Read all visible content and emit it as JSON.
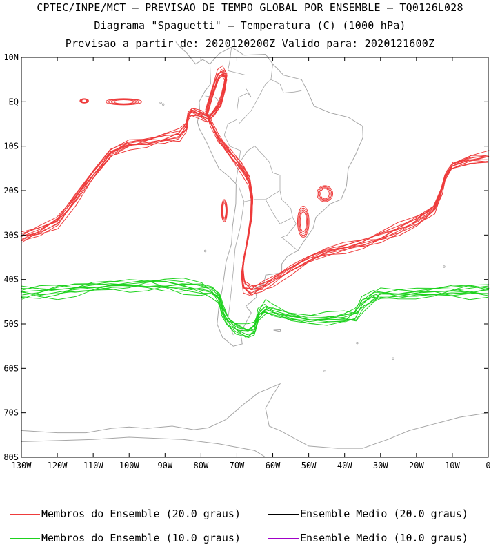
{
  "titles": {
    "line1": "CPTEC/INPE/MCT — PREVISAO DE TEMPO GLOBAL POR ENSEMBLE — TQ0126L028",
    "line2": "Diagrama \"Spaguetti\" — Temperatura (C) (1000 hPa)",
    "line3": "Previsao a partir de: 2020120200Z  Valido para: 2020121600Z"
  },
  "map": {
    "extent": {
      "lon_min": -130,
      "lon_max": 0,
      "lat_min": -80,
      "lat_max": 10
    },
    "lat_ticks": [
      {
        "value": 10,
        "label": "10N"
      },
      {
        "value": 0,
        "label": "EQ"
      },
      {
        "value": -10,
        "label": "10S"
      },
      {
        "value": -20,
        "label": "20S"
      },
      {
        "value": -30,
        "label": "30S"
      },
      {
        "value": -40,
        "label": "40S"
      },
      {
        "value": -50,
        "label": "50S"
      },
      {
        "value": -60,
        "label": "60S"
      },
      {
        "value": -70,
        "label": "70S"
      },
      {
        "value": -80,
        "label": "80S"
      }
    ],
    "lon_ticks": [
      {
        "value": -130,
        "label": "130W"
      },
      {
        "value": -120,
        "label": "120W"
      },
      {
        "value": -110,
        "label": "110W"
      },
      {
        "value": -100,
        "label": "100W"
      },
      {
        "value": -90,
        "label": "90W"
      },
      {
        "value": -80,
        "label": "80W"
      },
      {
        "value": -70,
        "label": "70W"
      },
      {
        "value": -60,
        "label": "60W"
      },
      {
        "value": -50,
        "label": "50W"
      },
      {
        "value": -40,
        "label": "40W"
      },
      {
        "value": -30,
        "label": "30W"
      },
      {
        "value": -20,
        "label": "20W"
      },
      {
        "value": -10,
        "label": "10W"
      },
      {
        "value": 0,
        "label": "0"
      }
    ],
    "colors": {
      "coast": "#a6a6a6",
      "red": "#ee3b3b",
      "green": "#1ed21e",
      "black": "#000000",
      "purple": "#a000c8"
    },
    "isolines": {
      "red_20": [
        [
          -130,
          -30.5
        ],
        [
          -125,
          -29
        ],
        [
          -120,
          -27
        ],
        [
          -115,
          -22
        ],
        [
          -110,
          -16.5
        ],
        [
          -105,
          -11.5
        ],
        [
          -100,
          -9.5
        ],
        [
          -95,
          -9
        ],
        [
          -90,
          -8.2
        ],
        [
          -86,
          -7.5
        ],
        [
          -84,
          -5.5
        ],
        [
          -83.5,
          -3
        ],
        [
          -82.5,
          -2.1
        ],
        [
          -80,
          -3
        ],
        [
          -78,
          -4
        ],
        [
          -76,
          -2
        ],
        [
          -74.5,
          0
        ],
        [
          -73.5,
          3
        ],
        [
          -73,
          5.5
        ],
        [
          -74,
          6.5
        ],
        [
          -75.2,
          6
        ],
        [
          -76.5,
          3
        ],
        [
          -78.5,
          -2.5
        ],
        [
          -77.5,
          -4.5
        ],
        [
          -75,
          -8.5
        ],
        [
          -71.5,
          -12
        ],
        [
          -68.5,
          -15
        ],
        [
          -66.5,
          -18
        ],
        [
          -65.8,
          -22
        ],
        [
          -66,
          -26
        ],
        [
          -67,
          -31
        ],
        [
          -68,
          -35
        ],
        [
          -68.5,
          -38.5
        ],
        [
          -68,
          -41.5
        ],
        [
          -66,
          -42.5
        ],
        [
          -63,
          -41.5
        ],
        [
          -60,
          -40.2
        ],
        [
          -55,
          -37.8
        ],
        [
          -50,
          -35.5
        ],
        [
          -45,
          -33.8
        ],
        [
          -40,
          -32.8
        ],
        [
          -35,
          -31.8
        ],
        [
          -30,
          -30.5
        ],
        [
          -25,
          -28.8
        ],
        [
          -20,
          -26.8
        ],
        [
          -15,
          -24
        ],
        [
          -13,
          -20
        ],
        [
          -12,
          -17
        ],
        [
          -10,
          -14.5
        ],
        [
          -5,
          -13
        ],
        [
          0,
          -12.5
        ]
      ],
      "green_10": [
        [
          -130,
          -43
        ],
        [
          -125,
          -42.8
        ],
        [
          -120,
          -42.5
        ],
        [
          -115,
          -42.2
        ],
        [
          -110,
          -41.8
        ],
        [
          -105,
          -41.4
        ],
        [
          -100,
          -41.2
        ],
        [
          -95,
          -41
        ],
        [
          -90,
          -41.2
        ],
        [
          -85,
          -41.6
        ],
        [
          -80,
          -42
        ],
        [
          -77,
          -42.5
        ],
        [
          -75,
          -44
        ],
        [
          -74,
          -47
        ],
        [
          -72.5,
          -49.5
        ],
        [
          -70,
          -51
        ],
        [
          -67,
          -51.8
        ],
        [
          -65,
          -51
        ],
        [
          -64,
          -48
        ],
        [
          -62,
          -46.5
        ],
        [
          -60,
          -47
        ],
        [
          -55,
          -48.2
        ],
        [
          -50,
          -49
        ],
        [
          -45,
          -49
        ],
        [
          -40,
          -48.6
        ],
        [
          -37,
          -48
        ],
        [
          -35,
          -45.5
        ],
        [
          -32,
          -44
        ],
        [
          -30,
          -43.5
        ],
        [
          -25,
          -43.5
        ],
        [
          -20,
          -43
        ],
        [
          -15,
          -42.7
        ],
        [
          -10,
          -42.6
        ],
        [
          -5,
          -42.6
        ],
        [
          0,
          -42.5
        ]
      ]
    },
    "cells": [
      {
        "lon": -112.5,
        "lat": 0.2,
        "rx": 1.2,
        "ry": 0.5
      },
      {
        "lon": -101.5,
        "lat": 0,
        "rx": 5,
        "ry": 0.7
      },
      {
        "lon": -45.5,
        "lat": -20.7,
        "rx": 2.2,
        "ry": 1.8
      },
      {
        "lon": -51.5,
        "lat": -27,
        "rx": 1.6,
        "ry": 3.5
      },
      {
        "lon": -73.5,
        "lat": -24.5,
        "rx": 0.8,
        "ry": 2.5
      }
    ]
  },
  "legend": [
    {
      "label": "Membros do Ensemble (20.0 graus)",
      "color": "#ee3b3b"
    },
    {
      "label": "Ensemble Medio (20.0 graus)",
      "color": "#000000"
    },
    {
      "label": "Membros do Ensemble (10.0 graus)",
      "color": "#1ed21e"
    },
    {
      "label": "Ensemble Medio (10.0 graus)",
      "color": "#a000c8"
    }
  ]
}
